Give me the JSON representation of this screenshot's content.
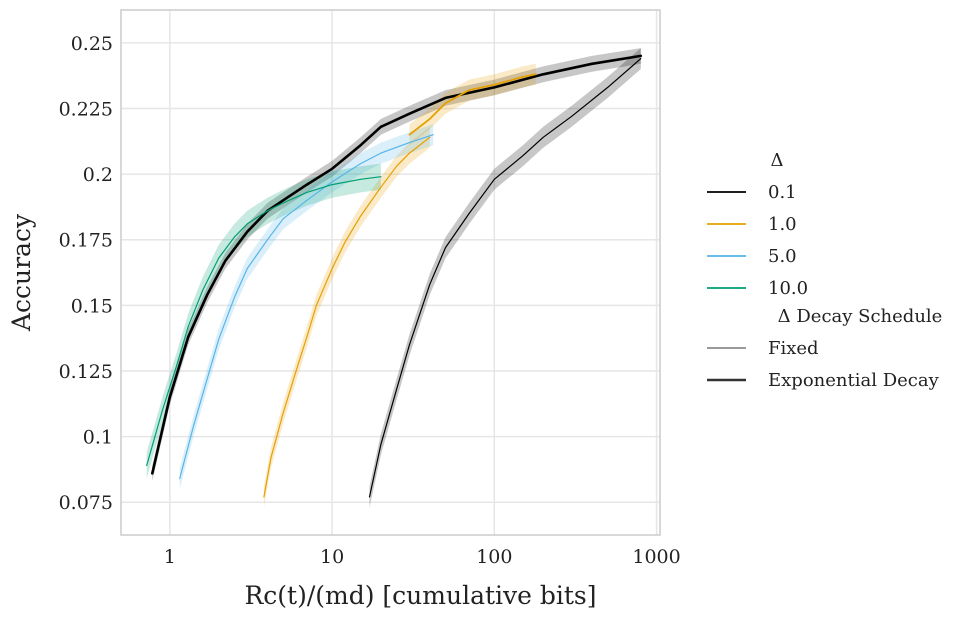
{
  "chart_data": {
    "type": "line",
    "title": "",
    "xlabel": "Rc(t)/(md) [cumulative bits]",
    "ylabel": "Accuracy",
    "xscale": "log",
    "xlim": [
      0.5,
      1050
    ],
    "ylim": [
      0.0625,
      0.2625
    ],
    "x_ticks": [
      1,
      10,
      100,
      1000
    ],
    "x_tick_labels": [
      "1",
      "10",
      "100",
      "1000"
    ],
    "y_ticks": [
      0.075,
      0.1,
      0.125,
      0.15,
      0.175,
      0.2,
      0.225,
      0.25
    ],
    "y_tick_labels": [
      "0.075",
      "0.1",
      "0.125",
      "0.15",
      "0.175",
      "0.2",
      "0.225",
      "0.25"
    ],
    "grid": true,
    "legend": {
      "placement": "right",
      "hue_title": "Δ",
      "style_title": "Δ Decay Schedule",
      "hue_entries": [
        {
          "label": "0.1",
          "color": "#000000"
        },
        {
          "label": "1.0",
          "color": "#E69F00"
        },
        {
          "label": "5.0",
          "color": "#56B4E9"
        },
        {
          "label": "10.0",
          "color": "#009E73"
        }
      ],
      "style_entries": [
        {
          "label": "Fixed",
          "style": "thin"
        },
        {
          "label": "Exponential Decay",
          "style": "thick"
        }
      ]
    },
    "series": [
      {
        "name": "0.1 Fixed",
        "color": "#000000",
        "width": 1.2,
        "band": 0.004,
        "x": [
          17,
          20,
          25,
          30,
          40,
          50,
          70,
          100,
          150,
          200,
          300,
          500,
          800
        ],
        "y": [
          0.077,
          0.097,
          0.118,
          0.135,
          0.158,
          0.172,
          0.185,
          0.198,
          0.207,
          0.214,
          0.222,
          0.233,
          0.244
        ]
      },
      {
        "name": "0.1 Exponential Decay",
        "color": "#000000",
        "width": 2.6,
        "band": 0.003,
        "x": [
          0.78,
          1,
          1.3,
          1.7,
          2.2,
          3,
          4,
          5,
          7,
          10,
          15,
          20,
          30,
          50,
          100,
          200,
          400,
          800
        ],
        "y": [
          0.086,
          0.115,
          0.138,
          0.154,
          0.167,
          0.178,
          0.186,
          0.19,
          0.196,
          0.202,
          0.211,
          0.218,
          0.223,
          0.229,
          0.233,
          0.238,
          0.242,
          0.245
        ]
      },
      {
        "name": "1.0 Fixed",
        "color": "#E69F00",
        "width": 1.2,
        "band": 0.004,
        "x": [
          3.8,
          4.2,
          5,
          6,
          7,
          8,
          10,
          12,
          15,
          20,
          25,
          30,
          40
        ],
        "y": [
          0.077,
          0.092,
          0.109,
          0.125,
          0.138,
          0.15,
          0.164,
          0.174,
          0.184,
          0.195,
          0.203,
          0.208,
          0.214
        ]
      },
      {
        "name": "1.0 Exponential Decay",
        "color": "#E69F00",
        "width": 1.8,
        "band": 0.004,
        "x": [
          30,
          40,
          50,
          70,
          100,
          150,
          180
        ],
        "y": [
          0.215,
          0.221,
          0.227,
          0.232,
          0.234,
          0.237,
          0.238
        ]
      },
      {
        "name": "5.0 Fixed",
        "color": "#56B4E9",
        "width": 1.2,
        "band": 0.004,
        "x": [
          1.15,
          1.4,
          1.7,
          2,
          2.5,
          3,
          4,
          5,
          7,
          10,
          15,
          20,
          30,
          42
        ],
        "y": [
          0.084,
          0.104,
          0.122,
          0.137,
          0.153,
          0.164,
          0.175,
          0.183,
          0.19,
          0.197,
          0.204,
          0.208,
          0.212,
          0.215
        ]
      },
      {
        "name": "10.0 Fixed",
        "color": "#009E73",
        "width": 1.2,
        "band": 0.005,
        "x": [
          0.72,
          0.9,
          1.1,
          1.3,
          1.6,
          2,
          2.5,
          3,
          4,
          5,
          7,
          10,
          15,
          20
        ],
        "y": [
          0.089,
          0.11,
          0.127,
          0.142,
          0.156,
          0.168,
          0.176,
          0.181,
          0.186,
          0.189,
          0.193,
          0.196,
          0.198,
          0.199
        ]
      }
    ]
  }
}
